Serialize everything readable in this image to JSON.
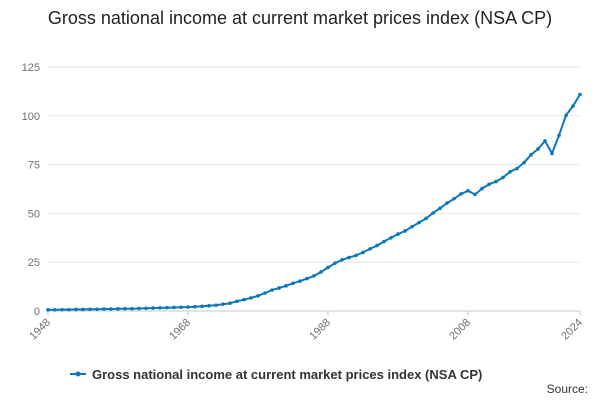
{
  "chart_data": {
    "type": "line",
    "title": "Gross national income at current market prices index (NSA CP)",
    "xlabel": "",
    "ylabel": "",
    "x_tick_labels": [
      "1948",
      "1968",
      "1988",
      "2008",
      "2024"
    ],
    "y_tick_labels": [
      "0",
      "25",
      "50",
      "75",
      "100",
      "125"
    ],
    "xlim": [
      1948,
      2024
    ],
    "ylim": [
      0,
      125
    ],
    "grid": true,
    "legend_position": "bottom",
    "series": [
      {
        "name": "Gross national income at current market prices index (NSA CP)",
        "color": "#0e77b8",
        "x": [
          1948,
          1949,
          1950,
          1951,
          1952,
          1953,
          1954,
          1955,
          1956,
          1957,
          1958,
          1959,
          1960,
          1961,
          1962,
          1963,
          1964,
          1965,
          1966,
          1967,
          1968,
          1969,
          1970,
          1971,
          1972,
          1973,
          1974,
          1975,
          1976,
          1977,
          1978,
          1979,
          1980,
          1981,
          1982,
          1983,
          1984,
          1985,
          1986,
          1987,
          1988,
          1989,
          1990,
          1991,
          1992,
          1993,
          1994,
          1995,
          1996,
          1997,
          1998,
          1999,
          2000,
          2001,
          2002,
          2003,
          2004,
          2005,
          2006,
          2007,
          2008,
          2009,
          2010,
          2011,
          2012,
          2013,
          2014,
          2015,
          2016,
          2017,
          2018,
          2019,
          2020,
          2021,
          2022,
          2023,
          2024
        ],
        "values": [
          0.6,
          0.6,
          0.7,
          0.7,
          0.8,
          0.8,
          0.9,
          0.9,
          1.0,
          1.0,
          1.1,
          1.2,
          1.2,
          1.3,
          1.4,
          1.5,
          1.6,
          1.7,
          1.8,
          1.9,
          2.0,
          2.2,
          2.4,
          2.7,
          3.0,
          3.5,
          4.0,
          5.0,
          5.8,
          6.7,
          7.8,
          9.2,
          10.7,
          11.8,
          12.9,
          14.2,
          15.3,
          16.6,
          18.0,
          20.0,
          22.3,
          24.5,
          26.2,
          27.4,
          28.5,
          30.0,
          31.8,
          33.5,
          35.6,
          37.5,
          39.4,
          41.0,
          43.2,
          45.3,
          47.4,
          50.2,
          52.6,
          55.3,
          57.5,
          60.0,
          61.6,
          59.7,
          62.7,
          64.9,
          66.3,
          68.4,
          71.3,
          73.0,
          76.0,
          80.0,
          83.0,
          87.1,
          80.7,
          90.0,
          100.2,
          105.0,
          110.9
        ]
      }
    ]
  },
  "source_label": "Source:"
}
